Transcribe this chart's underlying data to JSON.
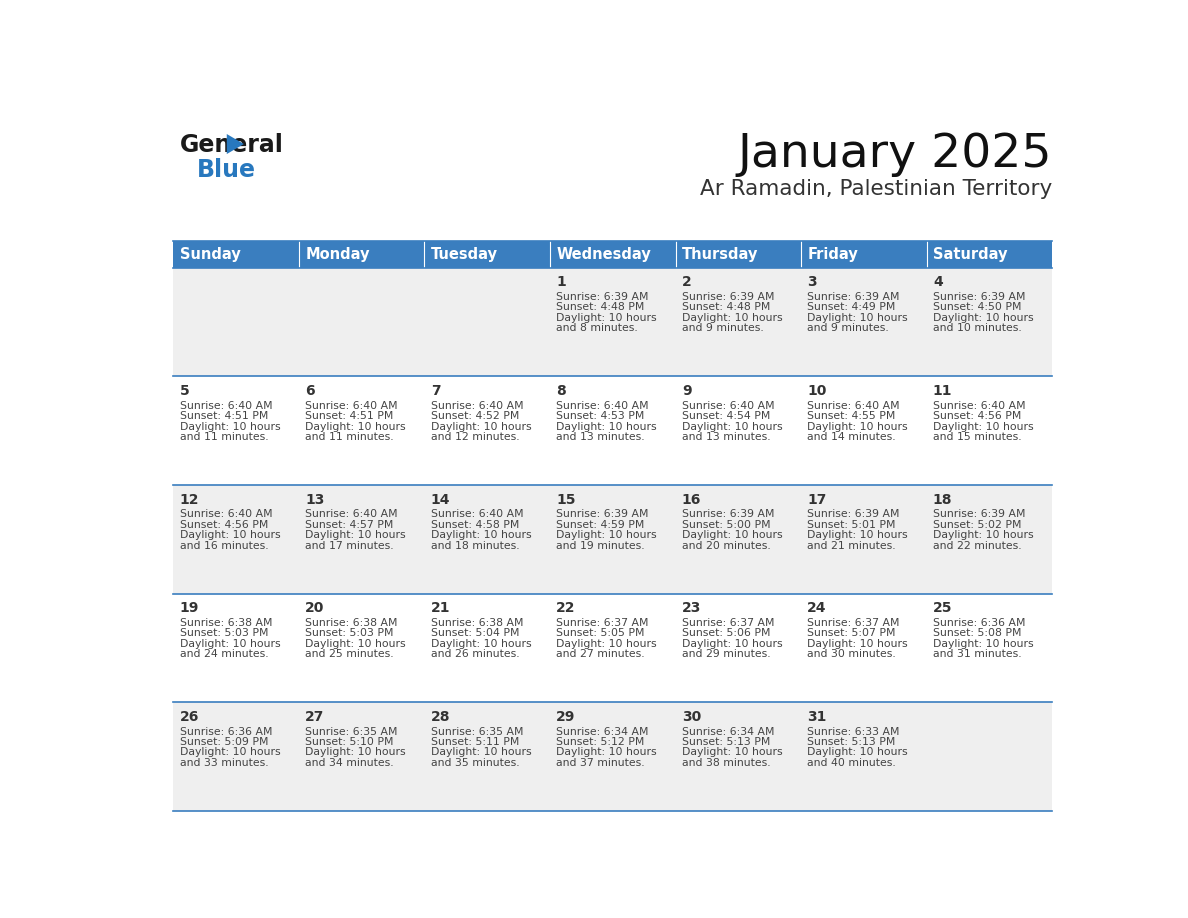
{
  "title": "January 2025",
  "subtitle": "Ar Ramadin, Palestinian Territory",
  "header_bg": "#3a7ebf",
  "header_text_color": "#ffffff",
  "days_of_week": [
    "Sunday",
    "Monday",
    "Tuesday",
    "Wednesday",
    "Thursday",
    "Friday",
    "Saturday"
  ],
  "row_bg_even": "#efefef",
  "row_bg_odd": "#ffffff",
  "cell_border_color": "#3a7ebf",
  "text_color": "#444444",
  "daynum_color": "#333333",
  "calendar": [
    [
      {
        "day": "",
        "sunrise": "",
        "sunset": "",
        "daylight": ""
      },
      {
        "day": "",
        "sunrise": "",
        "sunset": "",
        "daylight": ""
      },
      {
        "day": "",
        "sunrise": "",
        "sunset": "",
        "daylight": ""
      },
      {
        "day": "1",
        "sunrise": "6:39 AM",
        "sunset": "4:48 PM",
        "daylight": "10 hours and 8 minutes."
      },
      {
        "day": "2",
        "sunrise": "6:39 AM",
        "sunset": "4:48 PM",
        "daylight": "10 hours and 9 minutes."
      },
      {
        "day": "3",
        "sunrise": "6:39 AM",
        "sunset": "4:49 PM",
        "daylight": "10 hours and 9 minutes."
      },
      {
        "day": "4",
        "sunrise": "6:39 AM",
        "sunset": "4:50 PM",
        "daylight": "10 hours and 10 minutes."
      }
    ],
    [
      {
        "day": "5",
        "sunrise": "6:40 AM",
        "sunset": "4:51 PM",
        "daylight": "10 hours and 11 minutes."
      },
      {
        "day": "6",
        "sunrise": "6:40 AM",
        "sunset": "4:51 PM",
        "daylight": "10 hours and 11 minutes."
      },
      {
        "day": "7",
        "sunrise": "6:40 AM",
        "sunset": "4:52 PM",
        "daylight": "10 hours and 12 minutes."
      },
      {
        "day": "8",
        "sunrise": "6:40 AM",
        "sunset": "4:53 PM",
        "daylight": "10 hours and 13 minutes."
      },
      {
        "day": "9",
        "sunrise": "6:40 AM",
        "sunset": "4:54 PM",
        "daylight": "10 hours and 13 minutes."
      },
      {
        "day": "10",
        "sunrise": "6:40 AM",
        "sunset": "4:55 PM",
        "daylight": "10 hours and 14 minutes."
      },
      {
        "day": "11",
        "sunrise": "6:40 AM",
        "sunset": "4:56 PM",
        "daylight": "10 hours and 15 minutes."
      }
    ],
    [
      {
        "day": "12",
        "sunrise": "6:40 AM",
        "sunset": "4:56 PM",
        "daylight": "10 hours and 16 minutes."
      },
      {
        "day": "13",
        "sunrise": "6:40 AM",
        "sunset": "4:57 PM",
        "daylight": "10 hours and 17 minutes."
      },
      {
        "day": "14",
        "sunrise": "6:40 AM",
        "sunset": "4:58 PM",
        "daylight": "10 hours and 18 minutes."
      },
      {
        "day": "15",
        "sunrise": "6:39 AM",
        "sunset": "4:59 PM",
        "daylight": "10 hours and 19 minutes."
      },
      {
        "day": "16",
        "sunrise": "6:39 AM",
        "sunset": "5:00 PM",
        "daylight": "10 hours and 20 minutes."
      },
      {
        "day": "17",
        "sunrise": "6:39 AM",
        "sunset": "5:01 PM",
        "daylight": "10 hours and 21 minutes."
      },
      {
        "day": "18",
        "sunrise": "6:39 AM",
        "sunset": "5:02 PM",
        "daylight": "10 hours and 22 minutes."
      }
    ],
    [
      {
        "day": "19",
        "sunrise": "6:38 AM",
        "sunset": "5:03 PM",
        "daylight": "10 hours and 24 minutes."
      },
      {
        "day": "20",
        "sunrise": "6:38 AM",
        "sunset": "5:03 PM",
        "daylight": "10 hours and 25 minutes."
      },
      {
        "day": "21",
        "sunrise": "6:38 AM",
        "sunset": "5:04 PM",
        "daylight": "10 hours and 26 minutes."
      },
      {
        "day": "22",
        "sunrise": "6:37 AM",
        "sunset": "5:05 PM",
        "daylight": "10 hours and 27 minutes."
      },
      {
        "day": "23",
        "sunrise": "6:37 AM",
        "sunset": "5:06 PM",
        "daylight": "10 hours and 29 minutes."
      },
      {
        "day": "24",
        "sunrise": "6:37 AM",
        "sunset": "5:07 PM",
        "daylight": "10 hours and 30 minutes."
      },
      {
        "day": "25",
        "sunrise": "6:36 AM",
        "sunset": "5:08 PM",
        "daylight": "10 hours and 31 minutes."
      }
    ],
    [
      {
        "day": "26",
        "sunrise": "6:36 AM",
        "sunset": "5:09 PM",
        "daylight": "10 hours and 33 minutes."
      },
      {
        "day": "27",
        "sunrise": "6:35 AM",
        "sunset": "5:10 PM",
        "daylight": "10 hours and 34 minutes."
      },
      {
        "day": "28",
        "sunrise": "6:35 AM",
        "sunset": "5:11 PM",
        "daylight": "10 hours and 35 minutes."
      },
      {
        "day": "29",
        "sunrise": "6:34 AM",
        "sunset": "5:12 PM",
        "daylight": "10 hours and 37 minutes."
      },
      {
        "day": "30",
        "sunrise": "6:34 AM",
        "sunset": "5:13 PM",
        "daylight": "10 hours and 38 minutes."
      },
      {
        "day": "31",
        "sunrise": "6:33 AM",
        "sunset": "5:13 PM",
        "daylight": "10 hours and 40 minutes."
      },
      {
        "day": "",
        "sunrise": "",
        "sunset": "",
        "daylight": ""
      }
    ]
  ],
  "logo_general_color": "#1a1a1a",
  "logo_blue_color": "#2878be",
  "logo_triangle_color": "#2878be"
}
